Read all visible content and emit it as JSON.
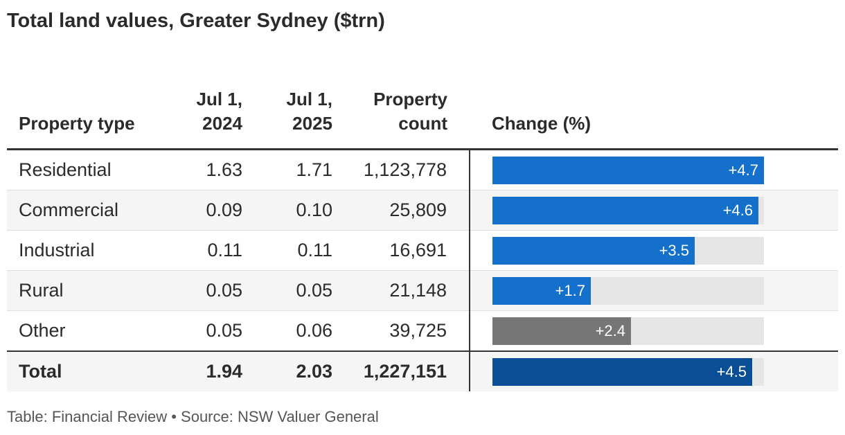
{
  "title": "Total land values, Greater Sydney ($trn)",
  "footer": "Table: Financial Review • Source: NSW Valuer General",
  "colors": {
    "bar_default": "#1570cc",
    "bar_other": "#767676",
    "bar_total": "#0a4f95",
    "track": "#e6e6e6"
  },
  "chart_data": {
    "type": "table",
    "columns": [
      "Property type",
      "Jul 1, 2024",
      "Jul 1, 2025",
      "Property count",
      "Change (%)"
    ],
    "column_headers": {
      "type": "Property type",
      "y2024": "Jul 1, 2024",
      "y2025": "Jul 1, 2025",
      "count": "Property count",
      "change": "Change (%)"
    },
    "bar_max": 4.7,
    "rows": [
      {
        "type": "Residential",
        "y2024": "1.63",
        "y2025": "1.71",
        "count": "1,123,778",
        "change": 4.7,
        "change_label": "+4.7",
        "color": "#1570cc"
      },
      {
        "type": "Commercial",
        "y2024": "0.09",
        "y2025": "0.10",
        "count": "25,809",
        "change": 4.6,
        "change_label": "+4.6",
        "color": "#1570cc"
      },
      {
        "type": "Industrial",
        "y2024": "0.11",
        "y2025": "0.11",
        "count": "16,691",
        "change": 3.5,
        "change_label": "+3.5",
        "color": "#1570cc"
      },
      {
        "type": "Rural",
        "y2024": "0.05",
        "y2025": "0.05",
        "count": "21,148",
        "change": 1.7,
        "change_label": "+1.7",
        "color": "#1570cc"
      },
      {
        "type": "Other",
        "y2024": "0.05",
        "y2025": "0.06",
        "count": "39,725",
        "change": 2.4,
        "change_label": "+2.4",
        "color": "#767676"
      }
    ],
    "total": {
      "type": "Total",
      "y2024": "1.94",
      "y2025": "2.03",
      "count": "1,227,151",
      "change": 4.5,
      "change_label": "+4.5",
      "color": "#0a4f95"
    }
  }
}
